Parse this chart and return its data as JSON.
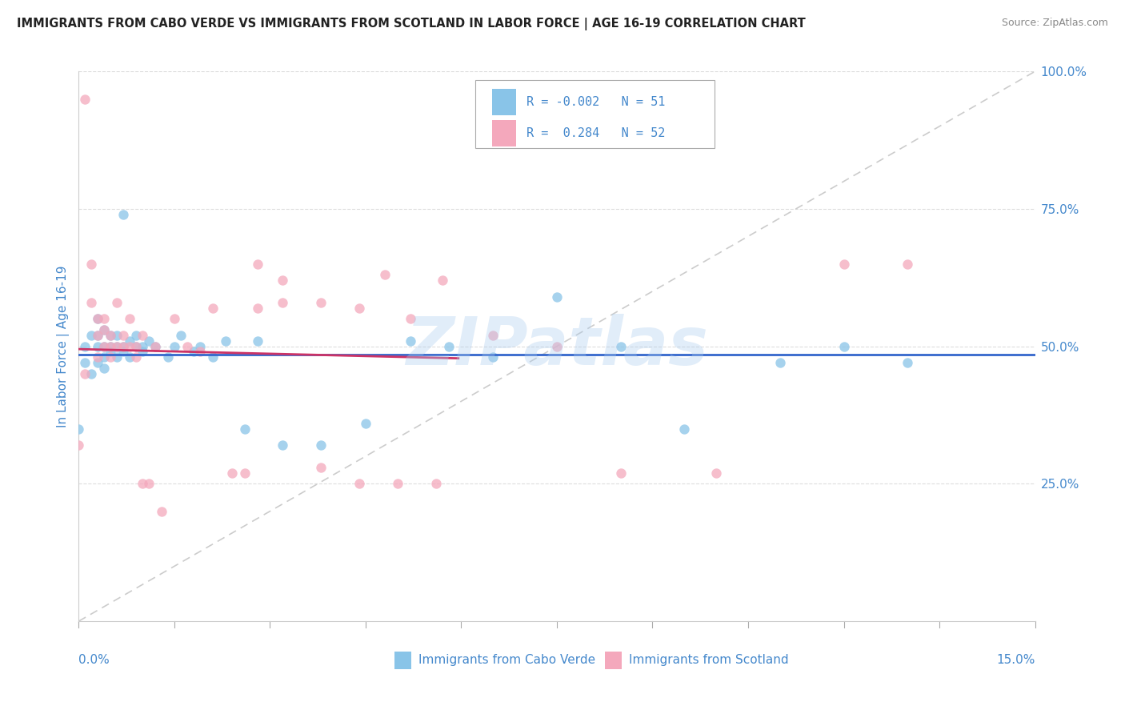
{
  "title": "IMMIGRANTS FROM CABO VERDE VS IMMIGRANTS FROM SCOTLAND IN LABOR FORCE | AGE 16-19 CORRELATION CHART",
  "source": "Source: ZipAtlas.com",
  "ylabel": "In Labor Force | Age 16-19",
  "color_blue": "#89c4e8",
  "color_pink": "#f4a8bc",
  "color_line_blue": "#3366cc",
  "color_line_pink": "#cc3366",
  "color_diag": "#cccccc",
  "color_text": "#4488cc",
  "watermark": "ZIPatlas",
  "xmin": 0.0,
  "xmax": 0.15,
  "ymin": 0.0,
  "ymax": 1.0,
  "cabo_verde_x": [
    0.001,
    0.001,
    0.002,
    0.002,
    0.003,
    0.003,
    0.003,
    0.003,
    0.004,
    0.004,
    0.004,
    0.004,
    0.005,
    0.005,
    0.005,
    0.006,
    0.006,
    0.006,
    0.007,
    0.007,
    0.007,
    0.008,
    0.008,
    0.009,
    0.009,
    0.01,
    0.01,
    0.011,
    0.012,
    0.014,
    0.015,
    0.016,
    0.018,
    0.019,
    0.021,
    0.023,
    0.026,
    0.028,
    0.032,
    0.038,
    0.045,
    0.052,
    0.058,
    0.065,
    0.075,
    0.085,
    0.095,
    0.11,
    0.12,
    0.13,
    0.0
  ],
  "cabo_verde_y": [
    0.47,
    0.5,
    0.52,
    0.45,
    0.5,
    0.47,
    0.52,
    0.55,
    0.48,
    0.5,
    0.46,
    0.53,
    0.5,
    0.49,
    0.52,
    0.5,
    0.48,
    0.52,
    0.5,
    0.74,
    0.49,
    0.51,
    0.48,
    0.5,
    0.52,
    0.5,
    0.49,
    0.51,
    0.5,
    0.48,
    0.5,
    0.52,
    0.49,
    0.5,
    0.48,
    0.51,
    0.35,
    0.51,
    0.32,
    0.32,
    0.36,
    0.51,
    0.5,
    0.48,
    0.59,
    0.5,
    0.35,
    0.47,
    0.5,
    0.47,
    0.35
  ],
  "scotland_x": [
    0.0,
    0.001,
    0.001,
    0.002,
    0.002,
    0.003,
    0.003,
    0.003,
    0.004,
    0.004,
    0.004,
    0.005,
    0.005,
    0.005,
    0.006,
    0.006,
    0.007,
    0.007,
    0.008,
    0.008,
    0.009,
    0.009,
    0.01,
    0.01,
    0.011,
    0.012,
    0.013,
    0.015,
    0.017,
    0.019,
    0.021,
    0.024,
    0.028,
    0.032,
    0.038,
    0.044,
    0.05,
    0.057,
    0.065,
    0.075,
    0.085,
    0.1,
    0.12,
    0.13,
    0.026,
    0.028,
    0.032,
    0.038,
    0.044,
    0.048,
    0.052,
    0.056
  ],
  "scotland_y": [
    0.32,
    0.95,
    0.45,
    0.65,
    0.58,
    0.55,
    0.52,
    0.48,
    0.53,
    0.5,
    0.55,
    0.5,
    0.48,
    0.52,
    0.5,
    0.58,
    0.5,
    0.52,
    0.5,
    0.55,
    0.5,
    0.48,
    0.52,
    0.25,
    0.25,
    0.5,
    0.2,
    0.55,
    0.5,
    0.49,
    0.57,
    0.27,
    0.57,
    0.58,
    0.28,
    0.25,
    0.25,
    0.62,
    0.52,
    0.5,
    0.27,
    0.27,
    0.65,
    0.65,
    0.27,
    0.65,
    0.62,
    0.58,
    0.57,
    0.63,
    0.55,
    0.25
  ]
}
